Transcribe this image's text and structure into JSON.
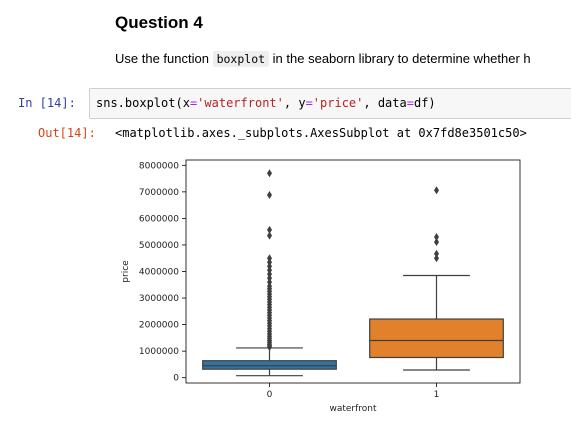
{
  "markdown": {
    "title": "Question 4",
    "text_before": "Use the function",
    "code_word": "boxplot",
    "text_after": "in the seaborn library to determine whether h"
  },
  "cell_in": {
    "prompt": "In [14]:",
    "code_parts": {
      "a": "sns.boxplot(",
      "b": "x",
      "c": "=",
      "d": "'waterfront'",
      "e": ", ",
      "f": "y",
      "g": "=",
      "h": "'price'",
      "i": ", data",
      "j": "=",
      "k": "df)"
    }
  },
  "cell_out": {
    "prompt": "Out[14]:",
    "text": "<matplotlib.axes._subplots.AxesSubplot at 0x7fd8e3501c50>"
  },
  "chart_data": {
    "type": "boxplot",
    "xlabel": "waterfront",
    "ylabel": "price",
    "categories": [
      "0",
      "1"
    ],
    "ylim": [
      -200000,
      8200000
    ],
    "yticks": [
      0,
      1000000,
      2000000,
      3000000,
      4000000,
      5000000,
      6000000,
      7000000,
      8000000
    ],
    "ytick_labels": [
      "0",
      "1000000",
      "2000000",
      "3000000",
      "4000000",
      "5000000",
      "6000000",
      "7000000",
      "8000000"
    ],
    "boxes": [
      {
        "category": "0",
        "color": "#3274a1",
        "whisker_low": 75000,
        "q1": 320000,
        "median": 450000,
        "q3": 640000,
        "whisker_high": 1120000,
        "outliers": [
          1150000,
          1200000,
          1260000,
          1330000,
          1400000,
          1480000,
          1560000,
          1650000,
          1750000,
          1850000,
          1950000,
          2050000,
          2150000,
          2250000,
          2350000,
          2450000,
          2550000,
          2650000,
          2750000,
          2850000,
          2950000,
          3050000,
          3150000,
          3250000,
          3350000,
          3450000,
          3600000,
          3750000,
          3900000,
          4050000,
          4200000,
          4350000,
          4500000,
          5350000,
          5570000,
          6880000,
          7700000
        ]
      },
      {
        "category": "1",
        "color": "#e1812c",
        "whisker_low": 290000,
        "q1": 760000,
        "median": 1400000,
        "q3": 2210000,
        "whisker_high": 3850000,
        "outliers": [
          4500000,
          4670000,
          5110000,
          5300000,
          7060000
        ]
      }
    ]
  }
}
